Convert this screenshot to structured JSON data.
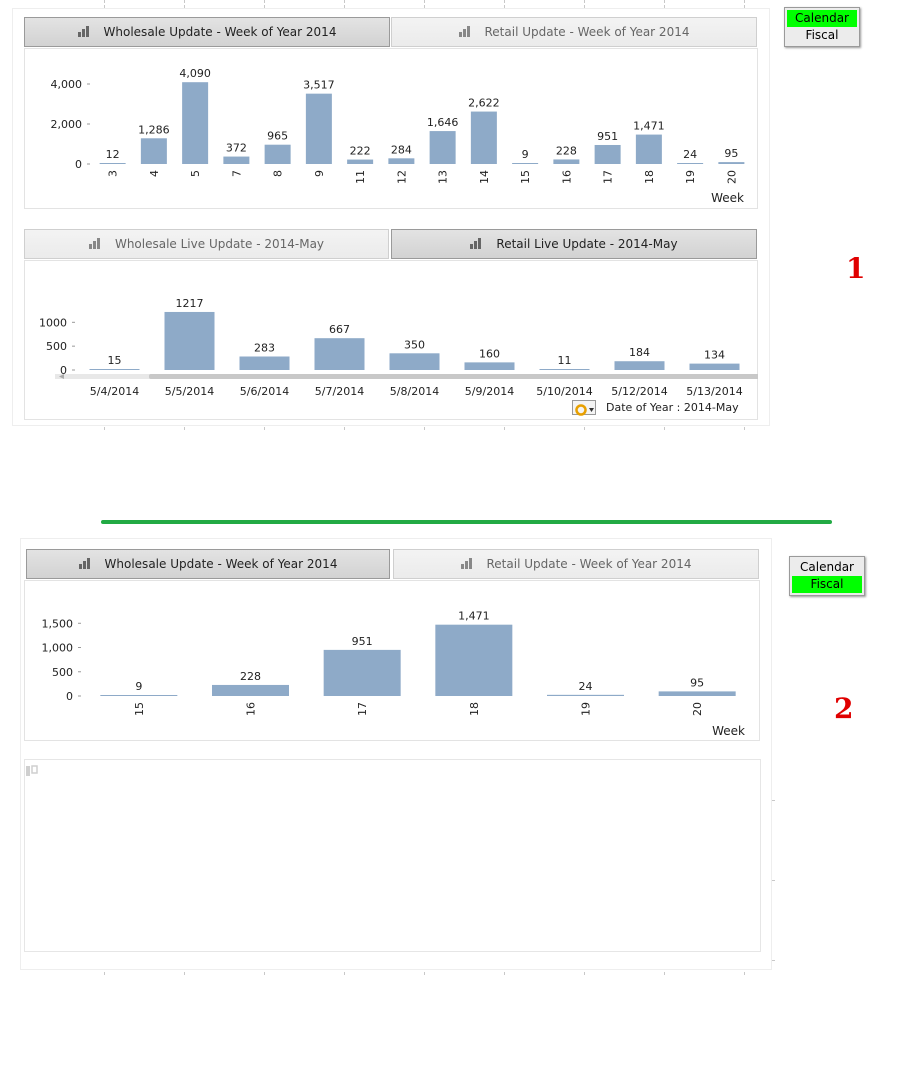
{
  "section1": {
    "tabs_top": [
      {
        "label": "Wholesale Update - Week of Year 2014",
        "active": true
      },
      {
        "label": "Retail Update - Week of Year 2014",
        "active": false
      }
    ],
    "weekly_chart": {
      "y_ticks": [
        "4,000",
        "2,000",
        "0"
      ],
      "xlabel": "Week"
    },
    "tabs_live": [
      {
        "label": "Wholesale Live Update - 2014-May",
        "active": false
      },
      {
        "label": "Retail Live Update - 2014-May",
        "active": true
      }
    ],
    "daily_chart": {
      "y_ticks": [
        "1000",
        "500",
        "0"
      ],
      "xlabel": "Date of Year : 2014-May"
    },
    "toggle": {
      "calendar": "Calendar",
      "fiscal": "Fiscal",
      "selected": "Calendar"
    },
    "marker": "1"
  },
  "section2": {
    "tabs_top": [
      {
        "label": "Wholesale Update - Week of Year 2014",
        "active": true
      },
      {
        "label": "Retail Update - Week of Year 2014",
        "active": false
      }
    ],
    "weekly_chart": {
      "y_ticks": [
        "1,500",
        "1,000",
        "500",
        "0"
      ],
      "xlabel": "Week"
    },
    "toggle": {
      "calendar": "Calendar",
      "fiscal": "Fiscal",
      "selected": "Fiscal"
    },
    "marker": "2"
  },
  "colors": {
    "bar": "#8eaac8",
    "accent_green": "#00ff00",
    "divider_green": "#22aa44",
    "marker_red": "#e00000"
  },
  "chart_data": [
    {
      "type": "bar",
      "xlabel": "Week",
      "categories": [
        "3",
        "4",
        "5",
        "7",
        "8",
        "9",
        "11",
        "12",
        "13",
        "14",
        "15",
        "16",
        "17",
        "18",
        "19",
        "20"
      ],
      "values": [
        12,
        1286,
        4090,
        372,
        965,
        3517,
        222,
        284,
        1646,
        2622,
        9,
        228,
        951,
        1471,
        24,
        95
      ],
      "labels": [
        "12",
        "1,286",
        "4,090",
        "372",
        "965",
        "3,517",
        "222",
        "284",
        "1,646",
        "2,622",
        "9",
        "228",
        "951",
        "1,471",
        "24",
        "95"
      ],
      "ylim": [
        0,
        4500
      ]
    },
    {
      "type": "bar",
      "xlabel": "Date of Year : 2014-May",
      "categories": [
        "5/4/2014",
        "5/5/2014",
        "5/6/2014",
        "5/7/2014",
        "5/8/2014",
        "5/9/2014",
        "5/10/2014",
        "5/12/2014",
        "5/13/2014"
      ],
      "values": [
        15,
        1217,
        283,
        667,
        350,
        160,
        11,
        184,
        134
      ],
      "labels": [
        "15",
        "1217",
        "283",
        "667",
        "350",
        "160",
        "11",
        "184",
        "134"
      ],
      "ylim": [
        0,
        1300
      ]
    },
    {
      "type": "bar",
      "xlabel": "Week",
      "categories": [
        "15",
        "16",
        "17",
        "18",
        "19",
        "20"
      ],
      "values": [
        9,
        228,
        951,
        1471,
        24,
        95
      ],
      "labels": [
        "9",
        "228",
        "951",
        "1,471",
        "24",
        "95"
      ],
      "ylim": [
        0,
        1650
      ]
    }
  ]
}
